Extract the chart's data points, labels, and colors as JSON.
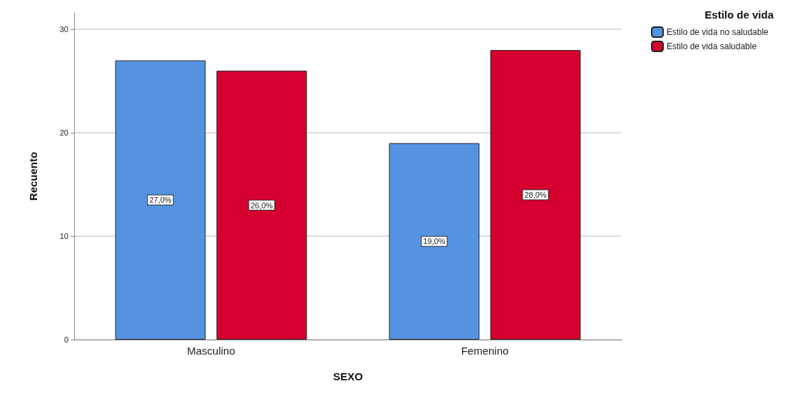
{
  "chart_data": {
    "type": "bar",
    "xlabel": "SEXO",
    "ylabel": "Recuento",
    "legend_title": "Estilo de vida",
    "categories": [
      "Masculino",
      "Femenino"
    ],
    "series": [
      {
        "name": "Estilo de vida no saludable",
        "color": "#5593e0",
        "values": [
          27,
          19
        ],
        "value_labels": [
          "27,0%",
          "19,0%"
        ]
      },
      {
        "name": "Estilo de vida saludable",
        "color": "#d5002f",
        "values": [
          26,
          28
        ],
        "value_labels": [
          "26,0%",
          "28,0%"
        ]
      }
    ],
    "ylim": [
      0,
      31.6
    ],
    "yticks": [
      0,
      10,
      20,
      30
    ],
    "grid": "y",
    "legend": "top right"
  }
}
